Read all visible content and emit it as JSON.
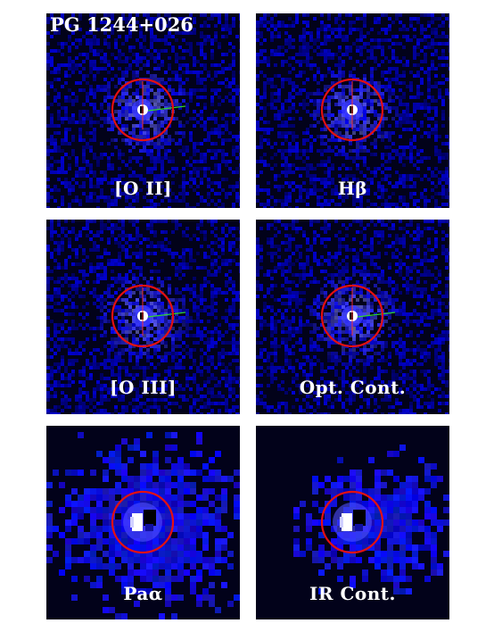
{
  "object_name": "PG 1244+026",
  "panels": [
    {
      "label": "[O II]",
      "style": "optical",
      "jet": true
    },
    {
      "label": "Hβ",
      "style": "optical",
      "jet": false
    },
    {
      "label": "[O III]",
      "style": "optical",
      "jet": true
    },
    {
      "label": "Opt. Cont.",
      "style": "optical",
      "jet": true
    },
    {
      "label": "Paα",
      "style": "ir",
      "jet": false
    },
    {
      "label": "IR Cont.",
      "style": "ir",
      "jet": false
    }
  ],
  "colors": {
    "background": "#02021a",
    "noise": "#1515c8",
    "glow": "#3a3aff",
    "circle": "#e41010",
    "jet_green": "#2fd32f",
    "jet_red": "#ff3030"
  }
}
